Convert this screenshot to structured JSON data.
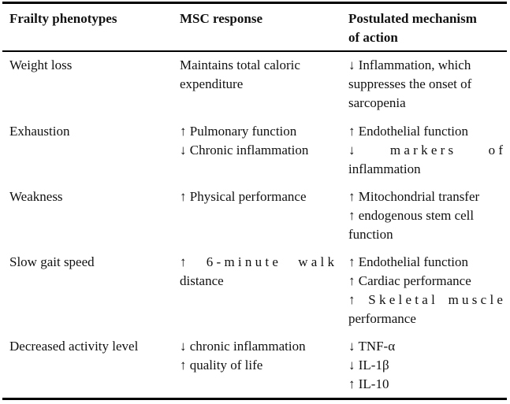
{
  "headers": {
    "col1": "Frailty phenotypes",
    "col2": "MSC response",
    "col3_line1": "Postulated mechanism",
    "col3_line2": "of action"
  },
  "rows": [
    {
      "phenotype": "Weight loss",
      "response": [
        "Maintains total caloric",
        "expenditure"
      ],
      "mechanism": [
        "↓ Inflammation, which",
        "suppresses the onset of",
        "sarcopenia"
      ]
    },
    {
      "phenotype": "Exhaustion",
      "response": [
        "↑ Pulmonary function",
        "↓ Chronic inflammation"
      ],
      "mechanism": [
        "↑ Endothelial function",
        "↓ markers of",
        "inflammation"
      ],
      "mechanism_line2_words": [
        "↓",
        "m a r k e r s",
        "o f"
      ]
    },
    {
      "phenotype": "Weakness",
      "response": [
        "↑ Physical performance"
      ],
      "mechanism": [
        "↑ Mitochondrial transfer",
        "↑ endogenous stem cell",
        "function"
      ]
    },
    {
      "phenotype": "Slow gait speed",
      "response": [
        "↑ 6-minute walk",
        "distance"
      ],
      "response_line1_words": [
        "↑",
        "6 - m i n u t e",
        "w a l k"
      ],
      "mechanism": [
        "↑ Endothelial function",
        "↑ Cardiac performance",
        "↑ Skeletal muscle",
        "performance"
      ],
      "mechanism_line3_words": [
        "↑",
        "S k e l e t a l",
        "m u s c l e"
      ]
    },
    {
      "phenotype": "Decreased activity level",
      "response": [
        "↓ chronic inflammation",
        "↑ quality of life"
      ],
      "mechanism": [
        "↓ TNF-α",
        "↓ IL-1β",
        "↑ IL-10"
      ]
    }
  ]
}
